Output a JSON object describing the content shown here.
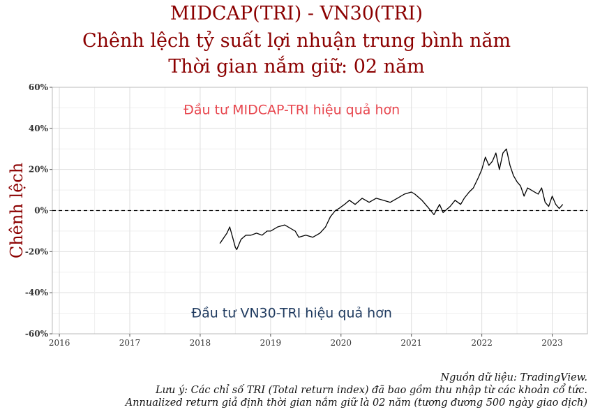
{
  "title_lines": [
    "MIDCAP(TRI) - VN30(TRI)",
    "Chênh lệch tỷ suất lợi nhuận trung bình năm",
    "Thời gian nắm giữ: 02 năm"
  ],
  "notes": [
    "Nguồn dữ liệu: TradingView.",
    "Lưu ý: Các chỉ số TRI (Total return index) đã bao gồm thu nhập từ các khoản cổ tức.",
    "Annualized return giả định thời gian nắm giữ là 02 năm (tương đương 500 ngày giao dịch)"
  ],
  "chart_data": {
    "type": "line",
    "ylabel": "Chênh lệch",
    "ylim": [
      -60,
      60
    ],
    "xlim": [
      2015.9,
      2023.5
    ],
    "y_ticks": [
      60,
      40,
      20,
      0,
      -20,
      -40,
      -60
    ],
    "y_tick_labels": [
      "60%",
      "40%",
      "20%",
      "0%",
      "-20%",
      "-40%",
      "-60%"
    ],
    "x_ticks": [
      2016,
      2017,
      2018,
      2019,
      2020,
      2021,
      2022,
      2023
    ],
    "x_tick_labels": [
      "2016",
      "2017",
      "2018",
      "2019",
      "2020",
      "2021",
      "2022",
      "2023"
    ],
    "grid": true,
    "reference_line": {
      "y": 0,
      "style": "dashed"
    },
    "annotations": [
      {
        "text": "Đầu tư MIDCAP-TRI hiệu quả hơn",
        "x": 2019.3,
        "y": 49
      },
      {
        "text": "Đầu tư VN30-TRI hiệu quả hơn",
        "x": 2019.3,
        "y": -50
      }
    ],
    "series": [
      {
        "x": [
          2018.28,
          2018.32,
          2018.38,
          2018.42,
          2018.46,
          2018.5,
          2018.52,
          2018.58,
          2018.65,
          2018.72,
          2018.8,
          2018.88,
          2018.95,
          2019.0,
          2019.1,
          2019.2,
          2019.3,
          2019.35,
          2019.4,
          2019.5,
          2019.6,
          2019.7,
          2019.78,
          2019.85,
          2019.92,
          2019.97,
          2020.05,
          2020.12,
          2020.2,
          2020.3,
          2020.4,
          2020.5,
          2020.6,
          2020.7,
          2020.8,
          2020.9,
          2021.0,
          2021.05,
          2021.15,
          2021.25,
          2021.32,
          2021.4,
          2021.45,
          2021.55,
          2021.62,
          2021.7,
          2021.75,
          2021.82,
          2021.88,
          2021.95,
          2022.0,
          2022.05,
          2022.1,
          2022.15,
          2022.2,
          2022.25,
          2022.3,
          2022.35,
          2022.4,
          2022.45,
          2022.5,
          2022.55,
          2022.6,
          2022.65,
          2022.7,
          2022.8,
          2022.85,
          2022.9,
          2022.95,
          2023.0,
          2023.05,
          2023.1,
          2023.15
        ],
        "y": [
          -16,
          -14,
          -11,
          -8,
          -13,
          -18,
          -19,
          -14,
          -12,
          -12,
          -11,
          -12,
          -10,
          -10,
          -8,
          -7,
          -9,
          -10,
          -13,
          -12,
          -13,
          -11,
          -8,
          -3,
          0,
          1,
          3,
          5,
          3,
          6,
          4,
          6,
          5,
          4,
          6,
          8,
          9,
          8,
          5,
          1,
          -2,
          3,
          -1,
          2,
          5,
          3,
          6,
          9,
          11,
          16,
          20,
          26,
          22,
          24,
          28,
          20,
          28,
          30,
          22,
          17,
          14,
          12,
          7,
          11,
          10,
          8,
          11,
          4,
          2,
          7,
          3,
          1,
          3
        ]
      }
    ]
  }
}
